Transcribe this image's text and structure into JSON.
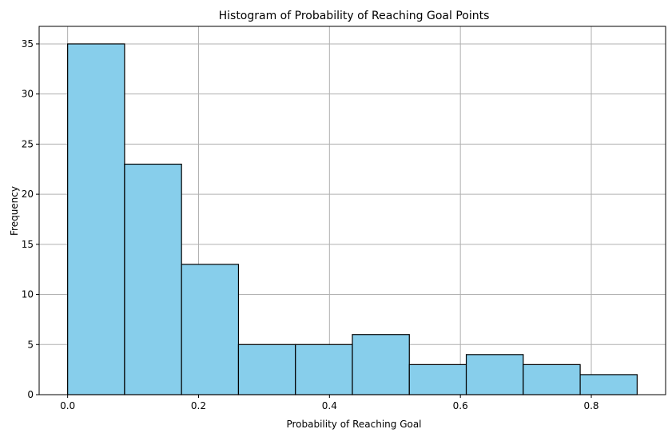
{
  "chart_data": {
    "type": "bar",
    "title": "Histogram of Probability of Reaching Goal Points",
    "xlabel": "Probability of Reaching Goal",
    "ylabel": "Frequency",
    "bins": [
      {
        "start": 0.0,
        "end": 0.087,
        "count": 35
      },
      {
        "start": 0.087,
        "end": 0.174,
        "count": 23
      },
      {
        "start": 0.174,
        "end": 0.261,
        "count": 13
      },
      {
        "start": 0.261,
        "end": 0.348,
        "count": 5
      },
      {
        "start": 0.348,
        "end": 0.435,
        "count": 5
      },
      {
        "start": 0.435,
        "end": 0.522,
        "count": 6
      },
      {
        "start": 0.522,
        "end": 0.609,
        "count": 3
      },
      {
        "start": 0.609,
        "end": 0.696,
        "count": 4
      },
      {
        "start": 0.696,
        "end": 0.783,
        "count": 3
      },
      {
        "start": 0.783,
        "end": 0.87,
        "count": 2
      }
    ],
    "xlim": [
      -0.0435,
      0.9135
    ],
    "ylim": [
      0,
      36.75
    ],
    "xticks": [
      0.0,
      0.2,
      0.4,
      0.6,
      0.8
    ],
    "xtick_labels": [
      "0.0",
      "0.2",
      "0.4",
      "0.6",
      "0.8"
    ],
    "yticks": [
      0,
      5,
      10,
      15,
      20,
      25,
      30,
      35
    ],
    "ytick_labels": [
      "0",
      "5",
      "10",
      "15",
      "20",
      "25",
      "30",
      "35"
    ],
    "grid": true,
    "colors": {
      "bar_fill": "#87ceeb",
      "bar_edge": "#000000",
      "grid": "#b0b0b0"
    }
  }
}
